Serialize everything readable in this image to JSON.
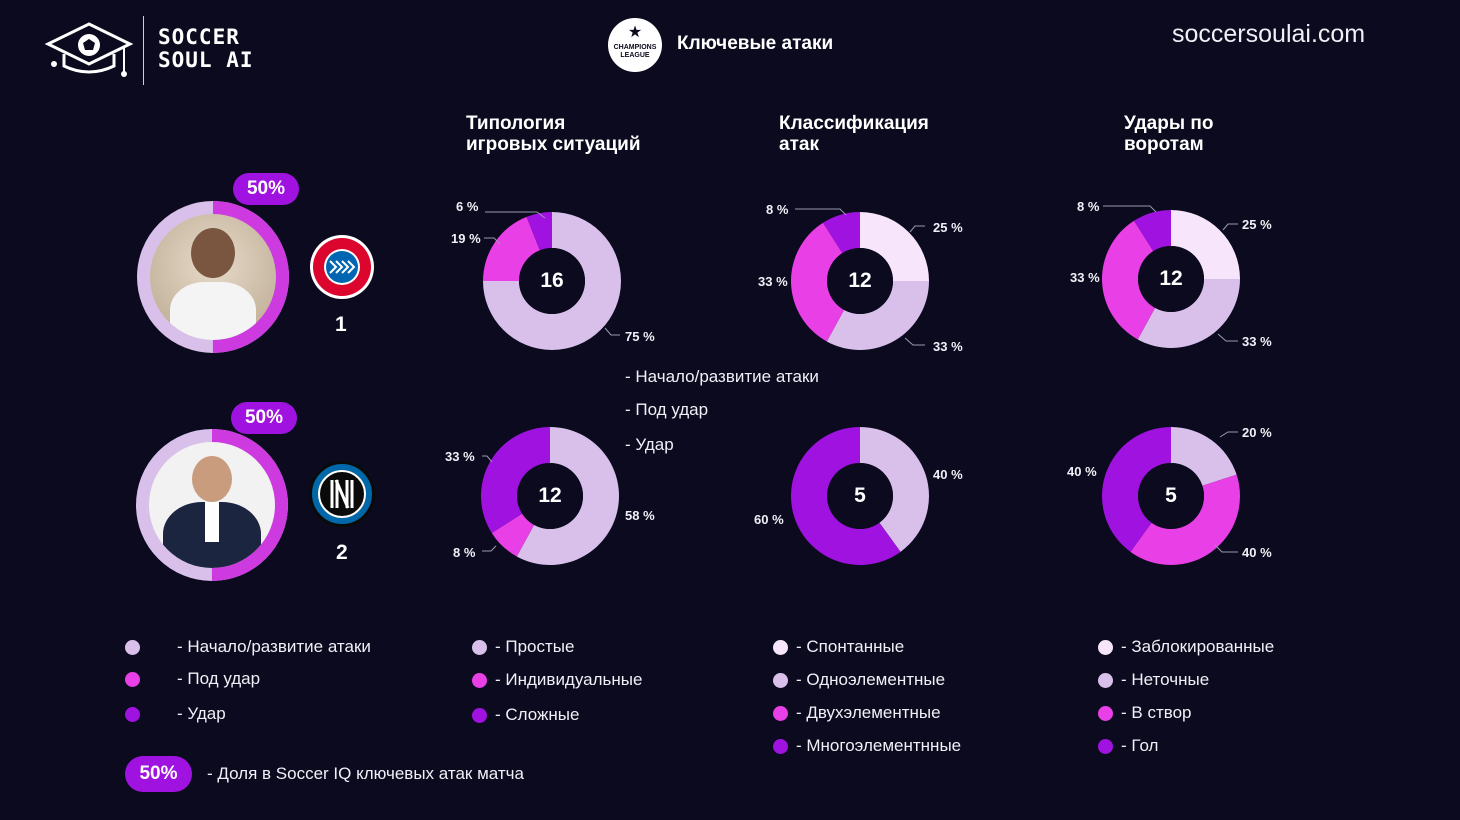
{
  "brand": {
    "line1": "SOCCER",
    "line2": "SOUL AI",
    "url": "soccersoulai.com"
  },
  "header": {
    "title": "Ключевые атаки",
    "league_logo_text": "CHAMPIONS LEAGUE"
  },
  "columns": {
    "typology": "Типология\nигровых ситуаций",
    "classification": "Классификация\nатак",
    "shots": "Удары по\nворотам"
  },
  "colors": {
    "c1": "#d8c0ea",
    "c2": "#e93fe6",
    "c3": "#a012e0",
    "c0": "#f7e6fb",
    "bg": "#0b0a1e"
  },
  "teams": [
    {
      "rank": "1",
      "share": "50%",
      "club": "FC Bayern München",
      "share_fraction": 0.5,
      "typology": {
        "total": "16",
        "labels": [
          "6 %",
          "19 %",
          "75 %"
        ]
      },
      "classification": {
        "total": "12",
        "labels": [
          "8 %",
          "33 %",
          "25 %",
          "33 %"
        ]
      },
      "shots": {
        "total": "12",
        "labels": [
          "8 %",
          "33 %",
          "25 %",
          "33 %"
        ]
      }
    },
    {
      "rank": "2",
      "share": "50%",
      "club": "Inter",
      "share_fraction": 0.5,
      "typology": {
        "total": "12",
        "labels": [
          "33 %",
          "8 %",
          "58 %"
        ]
      },
      "classification": {
        "total": "5",
        "labels": [
          "60 %",
          "40 %"
        ]
      },
      "shots": {
        "total": "5",
        "labels": [
          "40 %",
          "20 %",
          "40 %"
        ]
      }
    }
  ],
  "mid_legend": [
    "- Начало/развитие атаки",
    "- Под удар",
    "- Удар"
  ],
  "legends": {
    "typology": [
      "- Начало/развитие атаки",
      "- Под удар",
      "- Удар"
    ],
    "classification": [
      "- Простые",
      "- Индивидуальные",
      "- Сложные"
    ],
    "attack_type": [
      "- Спонтанные",
      "- Одноэлементные",
      "- Двухэлементные",
      "- Многоэлементнные"
    ],
    "shots": [
      "- Заблокированные",
      "- Неточные",
      "- В створ",
      "- Гол"
    ]
  },
  "footer": {
    "badge": "50%",
    "text": "- Доля в Soccer IQ ключевых атак матча"
  },
  "chart_data": [
    {
      "type": "pie",
      "title": "Типология игровых ситуаций",
      "team": "1",
      "total": 16,
      "categories": [
        "Начало/развитие атаки",
        "Под удар",
        "Удар"
      ],
      "values": [
        75,
        19,
        6
      ]
    },
    {
      "type": "pie",
      "title": "Классификация атак",
      "team": "1",
      "total": 12,
      "values": [
        25,
        33,
        33,
        8
      ]
    },
    {
      "type": "pie",
      "title": "Удары по воротам",
      "team": "1",
      "total": 12,
      "values": [
        25,
        33,
        33,
        8
      ]
    },
    {
      "type": "pie",
      "title": "Типология игровых ситуаций",
      "team": "2",
      "total": 12,
      "values": [
        58,
        8,
        33
      ]
    },
    {
      "type": "pie",
      "title": "Классификация атак",
      "team": "2",
      "total": 5,
      "values": [
        40,
        60
      ]
    },
    {
      "type": "pie",
      "title": "Удары по воротам",
      "team": "2",
      "total": 5,
      "values": [
        20,
        40,
        40
      ]
    }
  ]
}
